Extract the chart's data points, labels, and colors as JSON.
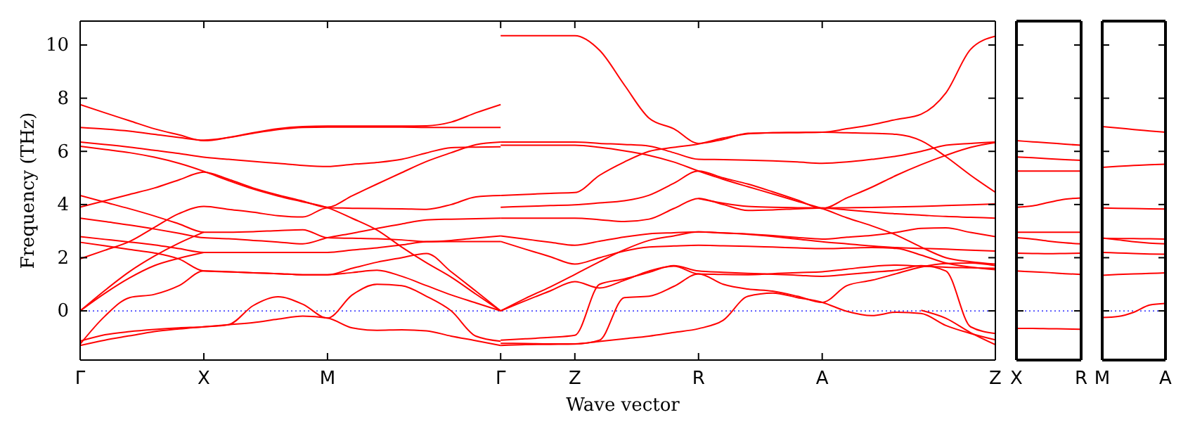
{
  "chart_data": [
    {
      "type": "line",
      "xlabel": "Wave vector",
      "ylabel": "Frequency (THz)",
      "categories": [
        "Γ",
        null,
        null,
        null,
        null,
        "X",
        null,
        null,
        null,
        null,
        "M",
        null,
        null,
        null,
        null,
        null,
        null,
        "Γ",
        null,
        null,
        "Z",
        null,
        null,
        null,
        null,
        "R",
        null,
        null,
        null,
        null,
        "A",
        null,
        null,
        null,
        null,
        null,
        null,
        "Z"
      ],
      "ylim": [
        -1.85,
        10.9
      ],
      "yticks": [
        0,
        2,
        4,
        6,
        8,
        10
      ],
      "grid": false,
      "line_style": "solid",
      "ref_lines": [
        {
          "axis": "y",
          "value": 0,
          "color": "#0000ff",
          "line_style": "dotted"
        }
      ],
      "series": [
        {
          "color": "#ff0000",
          "values": [
            7.76,
            7.45,
            7.15,
            6.85,
            6.62,
            6.4,
            6.52,
            6.7,
            6.85,
            6.93,
            6.95,
            6.95,
            6.95,
            6.95,
            6.96,
            7.1,
            7.45,
            7.76,
            null,
            null,
            null,
            null,
            null,
            null,
            null,
            null,
            null,
            null,
            null,
            null,
            null,
            null,
            null,
            null,
            null,
            null,
            null,
            null
          ]
        },
        {
          "color": "#ff0000",
          "values": [
            6.9,
            6.84,
            6.76,
            6.64,
            6.52,
            6.42,
            6.52,
            6.68,
            6.82,
            6.9,
            6.91,
            6.91,
            6.91,
            6.91,
            6.9,
            6.9,
            6.9,
            6.9,
            null,
            null,
            null,
            null,
            null,
            null,
            null,
            null,
            null,
            null,
            null,
            null,
            null,
            null,
            null,
            null,
            null,
            null,
            null,
            null
          ]
        },
        {
          "color": "#ff0000",
          "values": [
            6.35,
            6.26,
            6.16,
            6.04,
            5.92,
            5.78,
            5.7,
            5.62,
            5.55,
            5.47,
            5.43,
            5.51,
            5.58,
            5.7,
            5.94,
            6.14,
            6.16,
            6.17,
            null,
            null,
            null,
            null,
            null,
            null,
            null,
            null,
            null,
            null,
            null,
            null,
            null,
            null,
            null,
            null,
            null,
            null,
            null,
            null
          ]
        },
        {
          "color": "#ff0000",
          "values": [
            6.19,
            6.07,
            5.95,
            5.78,
            5.55,
            5.25,
            4.9,
            4.58,
            4.32,
            4.1,
            3.88,
            3.48,
            3.04,
            2.4,
            1.81,
            1.27,
            0.63,
            0,
            null,
            null,
            null,
            null,
            null,
            null,
            null,
            null,
            null,
            null,
            null,
            null,
            null,
            null,
            null,
            null,
            null,
            null,
            null,
            null
          ]
        },
        {
          "color": "#ff0000",
          "values": [
            3.9,
            4.14,
            4.38,
            4.62,
            4.93,
            5.22,
            4.95,
            4.62,
            4.36,
            4.13,
            3.9,
            4.33,
            4.77,
            5.2,
            5.62,
            5.95,
            6.25,
            6.35,
            null,
            null,
            null,
            null,
            null,
            null,
            null,
            null,
            null,
            null,
            null,
            null,
            null,
            null,
            null,
            null,
            null,
            null,
            null,
            null
          ]
        },
        {
          "color": "#ff0000",
          "values": [
            4.34,
            4.09,
            3.84,
            3.57,
            3.27,
            2.96,
            2.96,
            2.98,
            3.02,
            3.05,
            2.75,
            2.73,
            2.71,
            2.67,
            2.61,
            2.65,
            2.74,
            2.82,
            null,
            null,
            null,
            null,
            null,
            null,
            null,
            null,
            null,
            null,
            null,
            null,
            null,
            null,
            null,
            null,
            null,
            null,
            null,
            null
          ]
        },
        {
          "color": "#ff0000",
          "values": [
            3.49,
            3.36,
            3.23,
            3.08,
            2.92,
            2.75,
            2.71,
            2.65,
            2.59,
            2.52,
            2.75,
            2.92,
            3.1,
            3.27,
            3.42,
            3.45,
            3.47,
            3.49,
            null,
            null,
            null,
            null,
            null,
            null,
            null,
            null,
            null,
            null,
            null,
            null,
            null,
            null,
            null,
            null,
            null,
            null,
            null,
            null
          ]
        },
        {
          "color": "#ff0000",
          "values": [
            2.79,
            2.69,
            2.59,
            2.48,
            2.34,
            2.2,
            2.2,
            2.2,
            2.2,
            2.2,
            2.2,
            2.29,
            2.37,
            2.48,
            2.6,
            2.61,
            2.61,
            2.61,
            null,
            null,
            null,
            null,
            null,
            null,
            null,
            null,
            null,
            null,
            null,
            null,
            null,
            null,
            null,
            null,
            null,
            null,
            null,
            null
          ]
        },
        {
          "color": "#ff0000",
          "values": [
            2.58,
            2.45,
            2.31,
            2.18,
            1.95,
            1.5,
            1.47,
            1.43,
            1.4,
            1.36,
            1.36,
            1.6,
            1.83,
            2.0,
            2.16,
            1.47,
            0.74,
            0,
            null,
            null,
            null,
            null,
            null,
            null,
            null,
            null,
            null,
            null,
            null,
            null,
            null,
            null,
            null,
            null,
            null,
            null,
            null,
            null
          ]
        },
        {
          "color": "#ff0000",
          "values": [
            1.96,
            2.28,
            2.61,
            3.14,
            3.66,
            3.93,
            3.82,
            3.71,
            3.58,
            3.53,
            3.88,
            3.86,
            3.85,
            3.84,
            3.82,
            4.0,
            4.29,
            4.34,
            null,
            null,
            null,
            null,
            null,
            null,
            null,
            null,
            null,
            null,
            null,
            null,
            null,
            null,
            null,
            null,
            null,
            null,
            null,
            null
          ]
        },
        {
          "color": "#ff0000",
          "values": [
            0,
            0.77,
            1.48,
            2.06,
            2.55,
            2.96,
            null,
            null,
            null,
            null,
            null,
            null,
            null,
            null,
            null,
            null,
            null,
            null,
            null,
            null,
            null,
            null,
            null,
            null,
            null,
            null,
            null,
            null,
            null,
            null,
            null,
            null,
            null,
            null,
            null,
            null,
            null,
            null
          ]
        },
        {
          "color": "#ff0000",
          "values": [
            0,
            0.66,
            1.24,
            1.7,
            1.98,
            2.2,
            null,
            null,
            null,
            null,
            null,
            null,
            null,
            null,
            null,
            null,
            null,
            null,
            null,
            null,
            null,
            null,
            null,
            null,
            null,
            null,
            null,
            null,
            null,
            null,
            null,
            null,
            null,
            null,
            null,
            null,
            null,
            null
          ]
        },
        {
          "color": "#ff0000",
          "values": [
            -1.25,
            -0.2,
            0.5,
            0.62,
            0.95,
            1.5,
            1.47,
            1.43,
            1.4,
            1.36,
            1.36,
            1.44,
            1.53,
            1.3,
            0.95,
            0.6,
            0.3,
            0,
            null,
            null,
            null,
            null,
            null,
            null,
            null,
            null,
            null,
            null,
            null,
            null,
            null,
            null,
            null,
            null,
            null,
            null,
            null,
            null
          ]
        },
        {
          "color": "#ff0000",
          "values": [
            -1.14,
            -0.9,
            -0.78,
            -0.7,
            -0.64,
            -0.6,
            -0.52,
            0.2,
            0.53,
            0.25,
            -0.27,
            0.6,
            1.0,
            0.95,
            0.55,
            0.0,
            -0.95,
            -1.14,
            null,
            null,
            null,
            null,
            null,
            null,
            null,
            null,
            null,
            null,
            null,
            null,
            null,
            null,
            null,
            null,
            null,
            null,
            null,
            null
          ]
        },
        {
          "color": "#ff0000",
          "values": [
            -1.3,
            -1.1,
            -0.94,
            -0.78,
            -0.68,
            -0.6,
            -0.52,
            -0.44,
            -0.31,
            -0.2,
            -0.27,
            -0.64,
            -0.73,
            -0.71,
            -0.75,
            -0.95,
            -1.12,
            -1.3,
            null,
            null,
            null,
            null,
            null,
            null,
            null,
            null,
            null,
            null,
            null,
            null,
            null,
            null,
            null,
            null,
            null,
            null,
            null,
            null
          ]
        },
        {
          "color": "#ff0000",
          "values": [
            null,
            null,
            null,
            null,
            null,
            null,
            null,
            null,
            null,
            null,
            null,
            null,
            null,
            null,
            null,
            null,
            null,
            10.35,
            10.35,
            10.35,
            10.35,
            9.8,
            8.5,
            7.25,
            6.85,
            6.3,
            6.45,
            6.68,
            6.7,
            6.71,
            6.72,
            6.85,
            7.0,
            7.2,
            7.4,
            8.2,
            9.84,
            10.33
          ]
        },
        {
          "color": "#ff0000",
          "values": [
            null,
            null,
            null,
            null,
            null,
            null,
            null,
            null,
            null,
            null,
            null,
            null,
            null,
            null,
            null,
            null,
            null,
            6.35,
            6.35,
            6.35,
            6.35,
            6.3,
            6.26,
            6.2,
            5.95,
            5.7,
            5.69,
            5.67,
            5.64,
            5.6,
            5.55,
            5.6,
            5.7,
            5.82,
            6.0,
            6.23,
            6.3,
            6.35
          ]
        },
        {
          "color": "#ff0000",
          "values": [
            null,
            null,
            null,
            null,
            null,
            null,
            null,
            null,
            null,
            null,
            null,
            null,
            null,
            null,
            null,
            null,
            null,
            6.23,
            6.23,
            6.23,
            6.23,
            6.15,
            6.02,
            5.85,
            5.6,
            5.26,
            4.95,
            4.67,
            4.4,
            4.12,
            3.85,
            3.5,
            3.2,
            2.85,
            2.4,
            2.0,
            1.85,
            1.76
          ]
        },
        {
          "color": "#ff0000",
          "values": [
            null,
            null,
            null,
            null,
            null,
            null,
            null,
            null,
            null,
            null,
            null,
            null,
            null,
            null,
            null,
            null,
            null,
            4.34,
            4.38,
            4.42,
            4.45,
            5.1,
            5.6,
            6.0,
            6.15,
            6.28,
            6.5,
            6.66,
            6.7,
            6.71,
            6.72,
            6.7,
            6.68,
            6.64,
            6.4,
            5.8,
            5.1,
            4.46
          ]
        },
        {
          "color": "#ff0000",
          "values": [
            null,
            null,
            null,
            null,
            null,
            null,
            null,
            null,
            null,
            null,
            null,
            null,
            null,
            null,
            null,
            null,
            null,
            3.9,
            3.93,
            3.96,
            3.99,
            4.06,
            4.14,
            4.35,
            4.8,
            5.26,
            5.0,
            4.77,
            4.48,
            4.17,
            3.85,
            4.25,
            4.65,
            5.1,
            5.5,
            5.85,
            6.15,
            6.33
          ]
        },
        {
          "color": "#ff0000",
          "values": [
            null,
            null,
            null,
            null,
            null,
            null,
            null,
            null,
            null,
            null,
            null,
            null,
            null,
            null,
            null,
            null,
            null,
            3.49,
            3.49,
            3.49,
            3.49,
            3.43,
            3.36,
            3.45,
            3.85,
            4.23,
            4.0,
            3.78,
            3.8,
            3.84,
            3.87,
            3.88,
            3.89,
            3.91,
            3.93,
            3.96,
            3.99,
            4.02
          ]
        },
        {
          "color": "#ff0000",
          "values": [
            null,
            null,
            null,
            null,
            null,
            null,
            null,
            null,
            null,
            null,
            null,
            null,
            null,
            null,
            null,
            null,
            null,
            null,
            null,
            null,
            null,
            null,
            null,
            null,
            null,
            4.23,
            4.05,
            3.93,
            3.9,
            3.88,
            3.87,
            3.8,
            3.72,
            3.65,
            3.6,
            3.55,
            3.52,
            3.49
          ]
        },
        {
          "color": "#ff0000",
          "values": [
            null,
            null,
            null,
            null,
            null,
            null,
            null,
            null,
            null,
            null,
            null,
            null,
            null,
            null,
            null,
            null,
            null,
            2.82,
            2.7,
            2.58,
            2.47,
            2.62,
            2.78,
            2.9,
            2.94,
            2.97,
            2.93,
            2.89,
            2.83,
            2.76,
            2.7,
            2.77,
            2.84,
            2.95,
            3.1,
            3.12,
            2.95,
            2.79
          ]
        },
        {
          "color": "#ff0000",
          "values": [
            null,
            null,
            null,
            null,
            null,
            null,
            null,
            null,
            null,
            null,
            null,
            null,
            null,
            null,
            null,
            null,
            null,
            2.61,
            2.32,
            2.04,
            1.76,
            2.0,
            2.25,
            2.4,
            2.44,
            2.47,
            2.45,
            2.43,
            2.4,
            2.37,
            2.34,
            2.36,
            2.38,
            2.35,
            2.1,
            1.8,
            1.65,
            1.55
          ]
        },
        {
          "color": "#ff0000",
          "values": [
            null,
            null,
            null,
            null,
            null,
            null,
            null,
            null,
            null,
            null,
            null,
            null,
            null,
            null,
            null,
            null,
            null,
            0,
            0.47,
            0.9,
            1.37,
            1.85,
            2.3,
            2.65,
            2.82,
            2.97,
            2.93,
            2.88,
            2.8,
            2.7,
            2.6,
            2.52,
            2.44,
            2.38,
            2.35,
            2.32,
            2.28,
            2.25
          ]
        },
        {
          "color": "#ff0000",
          "values": [
            null,
            null,
            null,
            null,
            null,
            null,
            null,
            null,
            null,
            null,
            null,
            null,
            null,
            null,
            null,
            null,
            null,
            0,
            0.38,
            0.75,
            1.1,
            0.86,
            1.15,
            1.5,
            1.68,
            1.39,
            1.37,
            1.36,
            1.4,
            1.44,
            1.47,
            1.57,
            1.67,
            1.72,
            1.68,
            1.64,
            1.62,
            1.6
          ]
        },
        {
          "color": "#ff0000",
          "values": [
            null,
            null,
            null,
            null,
            null,
            null,
            null,
            null,
            null,
            null,
            null,
            null,
            null,
            null,
            null,
            null,
            null,
            -1.1,
            -1.05,
            -1.0,
            -0.92,
            1.0,
            1.2,
            1.45,
            1.7,
            1.5,
            1.45,
            1.41,
            1.38,
            1.34,
            1.3,
            1.37,
            1.45,
            1.53,
            1.7,
            1.5,
            -0.6,
            -0.85
          ]
        },
        {
          "color": "#ff0000",
          "values": [
            null,
            null,
            null,
            null,
            null,
            null,
            null,
            null,
            null,
            null,
            null,
            null,
            null,
            null,
            null,
            null,
            null,
            -1.3,
            -1.27,
            -1.26,
            -1.25,
            -1.1,
            0.5,
            0.55,
            0.92,
            1.39,
            1.0,
            0.82,
            0.74,
            0.55,
            0.32,
            0.95,
            1.15,
            1.4,
            1.65,
            1.78,
            1.8,
            1.7
          ]
        },
        {
          "color": "#ff0000",
          "values": [
            null,
            null,
            null,
            null,
            null,
            null,
            null,
            null,
            null,
            null,
            null,
            null,
            null,
            null,
            null,
            null,
            null,
            -1.22,
            -1.23,
            -1.24,
            -1.24,
            -1.15,
            -1.05,
            -0.95,
            -0.81,
            -0.67,
            -0.35,
            0.55,
            0.67,
            0.5,
            0.32,
            -0.02,
            -0.18,
            -0.05,
            -0.1,
            -0.55,
            -0.85,
            -1.09
          ]
        },
        {
          "color": "#ff0000",
          "values": [
            null,
            null,
            null,
            null,
            null,
            null,
            null,
            null,
            null,
            null,
            null,
            null,
            null,
            null,
            null,
            null,
            null,
            null,
            null,
            null,
            null,
            null,
            null,
            null,
            null,
            null,
            null,
            null,
            null,
            null,
            null,
            null,
            null,
            null,
            0.02,
            -0.28,
            -0.82,
            -1.27
          ]
        }
      ]
    },
    {
      "type": "line",
      "categories": [
        "X",
        null,
        null,
        null,
        "R"
      ],
      "ylim": [
        -1.85,
        10.9
      ],
      "yticks": [
        0,
        2,
        4,
        6,
        8,
        10
      ],
      "tick_labels": "x",
      "grid": false,
      "line_style": "solid",
      "ref_lines": [
        {
          "axis": "y",
          "value": 0,
          "color": "#0000ff",
          "line_style": "dotted"
        }
      ],
      "series": [
        {
          "color": "#ff0000",
          "values": [
            6.4,
            6.36,
            6.32,
            6.27,
            6.23
          ]
        },
        {
          "color": "#ff0000",
          "values": [
            5.79,
            5.76,
            5.72,
            5.69,
            5.66
          ]
        },
        {
          "color": "#ff0000",
          "values": [
            5.26,
            5.26,
            5.26,
            5.26,
            5.26
          ]
        },
        {
          "color": "#ff0000",
          "values": [
            3.9,
            3.95,
            4.08,
            4.2,
            4.25
          ]
        },
        {
          "color": "#ff0000",
          "values": [
            2.96,
            2.96,
            2.96,
            2.96,
            2.96
          ]
        },
        {
          "color": "#ff0000",
          "values": [
            2.75,
            2.7,
            2.62,
            2.56,
            2.52
          ]
        },
        {
          "color": "#ff0000",
          "values": [
            2.17,
            2.16,
            2.15,
            2.16,
            2.17
          ]
        },
        {
          "color": "#ff0000",
          "values": [
            1.5,
            1.47,
            1.44,
            1.4,
            1.37
          ]
        },
        {
          "color": "#ff0000",
          "values": [
            -0.66,
            -0.66,
            -0.67,
            -0.68,
            -0.69
          ]
        }
      ]
    },
    {
      "type": "line",
      "categories": [
        "M",
        null,
        null,
        null,
        "A"
      ],
      "ylim": [
        -1.85,
        10.9
      ],
      "yticks": [
        0,
        2,
        4,
        6,
        8,
        10
      ],
      "tick_labels": "x",
      "grid": false,
      "line_style": "solid",
      "ref_lines": [
        {
          "axis": "y",
          "value": 0,
          "color": "#0000ff",
          "line_style": "dotted"
        }
      ],
      "series": [
        {
          "color": "#ff0000",
          "values": [
            6.93,
            6.88,
            6.82,
            6.77,
            6.72
          ]
        },
        {
          "color": "#ff0000",
          "values": [
            5.4,
            5.44,
            5.47,
            5.5,
            5.52
          ]
        },
        {
          "color": "#ff0000",
          "values": [
            3.87,
            3.86,
            3.85,
            3.84,
            3.83
          ]
        },
        {
          "color": "#ff0000",
          "values": [
            2.73,
            2.72,
            2.72,
            2.71,
            2.7
          ]
        },
        {
          "color": "#ff0000",
          "values": [
            2.74,
            2.67,
            2.6,
            2.55,
            2.52
          ]
        },
        {
          "color": "#ff0000",
          "values": [
            2.2,
            2.18,
            2.16,
            2.14,
            2.13
          ]
        },
        {
          "color": "#ff0000",
          "values": [
            1.34,
            1.37,
            1.39,
            1.41,
            1.43
          ]
        },
        {
          "color": "#ff0000",
          "values": [
            -0.25,
            -0.21,
            -0.05,
            0.22,
            0.28
          ]
        }
      ]
    }
  ]
}
